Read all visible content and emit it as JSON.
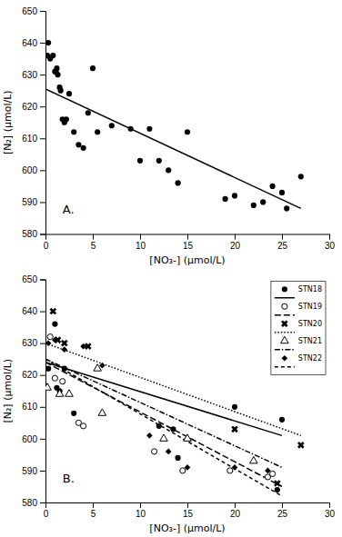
{
  "chart_data": [
    {
      "type": "scatter",
      "xlabel": "[NO₃-] (μmol/L)",
      "ylabel": "[N₂] (μmol/L)",
      "annotations": [
        "A."
      ],
      "xlim": [
        0,
        30
      ],
      "ylim": [
        580,
        650
      ],
      "xticks": [
        0,
        5,
        10,
        15,
        20,
        25,
        30
      ],
      "yticks": [
        580,
        590,
        600,
        610,
        620,
        630,
        640,
        650
      ],
      "grid": false,
      "series": [
        {
          "type": "scatter",
          "marker": "circle",
          "color": "black",
          "x": [
            0.2,
            0.3,
            0.5,
            0.8,
            1.0,
            1.1,
            1.2,
            1.3,
            1.5,
            1.6,
            1.8,
            2.0,
            2.2,
            2.5,
            3.0,
            3.5,
            4.0,
            4.5,
            5.0,
            5.5,
            7.0,
            9.0,
            10.0,
            11.0,
            12.0,
            13.0,
            14.0,
            15.0,
            19.0,
            20.0,
            22.0,
            23.0,
            24.0,
            25.0,
            25.5,
            27.0
          ],
          "values": [
            636,
            640,
            635,
            636,
            631,
            631,
            632,
            630,
            626,
            625,
            616,
            615,
            616,
            624,
            612,
            608,
            607,
            618,
            632,
            612,
            614,
            613,
            603,
            613,
            603,
            600,
            596,
            612,
            591,
            592,
            589,
            590,
            595,
            593,
            588,
            598
          ]
        },
        {
          "type": "line",
          "line_style": "solid",
          "color": "black",
          "x": [
            0,
            27
          ],
          "values": [
            625.5,
            588.0
          ]
        }
      ]
    },
    {
      "type": "scatter",
      "xlabel": "[NO₃-] (μmol/L)",
      "ylabel": "[N₂] (μmol/L)",
      "annotations": [
        "B."
      ],
      "xlim": [
        0,
        30
      ],
      "ylim": [
        580,
        650
      ],
      "xticks": [
        0,
        5,
        10,
        15,
        20,
        25,
        30
      ],
      "yticks": [
        580,
        590,
        600,
        610,
        620,
        630,
        640,
        650
      ],
      "grid": false,
      "legend": "upper right",
      "series": [
        {
          "name": "STN18",
          "type": "scatter",
          "marker": "circle",
          "color": "black",
          "x": [
            0.3,
            1.0,
            1.2,
            1.5,
            2.0,
            3.0,
            12.0,
            13.5,
            14.0,
            20.0,
            24.5,
            25.0
          ],
          "values": [
            622,
            636,
            616,
            615,
            622,
            608,
            604,
            603,
            594,
            610,
            584,
            606
          ]
        },
        {
          "type": "line",
          "line_style": "solid",
          "color": "black",
          "x": [
            0,
            25
          ],
          "values": [
            624,
            601
          ]
        },
        {
          "name": "STN19",
          "type": "scatter",
          "marker": "circle-open",
          "color": "black",
          "x": [
            0.5,
            1.0,
            1.8,
            3.5,
            4.0,
            11.5,
            14.5,
            19.5,
            23.5,
            24.0
          ],
          "values": [
            632,
            619,
            618,
            605,
            604,
            596,
            590,
            590,
            588,
            589
          ]
        },
        {
          "type": "line",
          "line_style": "long-dashed",
          "color": "black",
          "x": [
            0,
            25
          ],
          "values": [
            624,
            585
          ]
        },
        {
          "name": "STN20",
          "type": "scatter",
          "marker": "x",
          "color": "black",
          "x": [
            0.8,
            1.3,
            2.0,
            4.5,
            20.0,
            24.5,
            27.0
          ],
          "values": [
            640,
            631,
            630,
            629,
            603,
            586,
            598
          ]
        },
        {
          "type": "line",
          "line_style": "dotted",
          "color": "black",
          "x": [
            0,
            27
          ],
          "values": [
            630,
            601
          ]
        },
        {
          "name": "STN21",
          "type": "scatter",
          "marker": "triangle-open",
          "color": "black",
          "x": [
            0.2,
            1.5,
            2.5,
            5.5,
            6.0,
            12.5,
            15.0,
            22.0
          ],
          "values": [
            616,
            614,
            614,
            622,
            608,
            600,
            600,
            593
          ]
        },
        {
          "type": "line",
          "line_style": "dash-dot",
          "color": "black",
          "x": [
            0,
            25
          ],
          "values": [
            625,
            591
          ]
        },
        {
          "name": "STN22",
          "type": "scatter",
          "marker": "diamond",
          "color": "black",
          "x": [
            0.3,
            1.0,
            2.0,
            4.0,
            6.0,
            11.0,
            13.0,
            15.0,
            20.0,
            23.5
          ],
          "values": [
            630,
            631,
            628,
            629,
            623,
            601,
            596,
            591,
            591,
            590
          ]
        },
        {
          "type": "line",
          "line_style": "dashed",
          "color": "black",
          "x": [
            0,
            25
          ],
          "values": [
            625,
            582
          ]
        }
      ]
    }
  ]
}
